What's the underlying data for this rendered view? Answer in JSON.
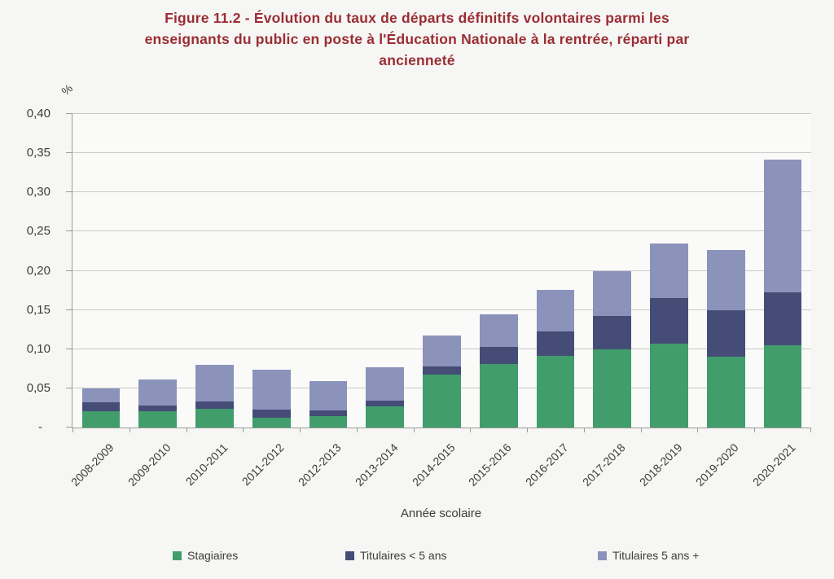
{
  "header": {
    "title_lines": [
      "Figure 11.2 - Évolution du taux de départs définitifs volontaires parmi les",
      "enseignants du public en poste à l'Éducation Nationale à la rentrée, réparti par",
      "ancienneté"
    ]
  },
  "colors": {
    "title": "#9b2d33",
    "text": "#3c3c3a",
    "axis": "#9a9a98",
    "gridline": "#c9c9c7",
    "page_background": "#f6f6f4",
    "plot_background": "#fafaf9",
    "stagiaires": "#419d6b",
    "titulaires_moins_5_ans": "#454d77",
    "titulaires_5_ans_plus": "#8b93bb"
  },
  "chart_data": {
    "type": "bar",
    "stacked": true,
    "title": "Figure 11.2 - Évolution du taux de départs définitifs volontaires parmi les enseignants du public en poste à l'Éducation Nationale à la rentrée, réparti par ancienneté",
    "xlabel": "Année scolaire",
    "ylabel": "%",
    "ylim": [
      0,
      0.4
    ],
    "grid": true,
    "legend_position": "bottom",
    "y_ticks": [
      {
        "value": 0.0,
        "label": "-"
      },
      {
        "value": 0.05,
        "label": "0,05"
      },
      {
        "value": 0.1,
        "label": "0,10"
      },
      {
        "value": 0.15,
        "label": "0,15"
      },
      {
        "value": 0.2,
        "label": "0,20"
      },
      {
        "value": 0.25,
        "label": "0,25"
      },
      {
        "value": 0.3,
        "label": "0,30"
      },
      {
        "value": 0.35,
        "label": "0,35"
      },
      {
        "value": 0.4,
        "label": "0,40"
      }
    ],
    "categories": [
      "2008-2009",
      "2009-2010",
      "2010-2011",
      "2011-2012",
      "2012-2013",
      "2013-2014",
      "2014-2015",
      "2015-2016",
      "2016-2017",
      "2017-2018",
      "2018-2019",
      "2019-2020",
      "2020-2021"
    ],
    "series": [
      {
        "name": "Stagiaires",
        "color": "#419d6b",
        "values": [
          0.021,
          0.021,
          0.024,
          0.012,
          0.015,
          0.027,
          0.068,
          0.081,
          0.091,
          0.1,
          0.107,
          0.09,
          0.105
        ]
      },
      {
        "name": "Titulaires < 5 ans",
        "color": "#454d77",
        "values": [
          0.011,
          0.007,
          0.009,
          0.011,
          0.007,
          0.007,
          0.01,
          0.022,
          0.032,
          0.042,
          0.058,
          0.06,
          0.067
        ]
      },
      {
        "name": "Titulaires 5 ans +",
        "color": "#8b93bb",
        "values": [
          0.018,
          0.033,
          0.047,
          0.051,
          0.037,
          0.043,
          0.039,
          0.041,
          0.053,
          0.058,
          0.07,
          0.077,
          0.17
        ]
      }
    ],
    "totals": [
      0.05,
      0.061,
      0.08,
      0.074,
      0.059,
      0.077,
      0.117,
      0.144,
      0.176,
      0.2,
      0.235,
      0.227,
      0.342
    ]
  }
}
